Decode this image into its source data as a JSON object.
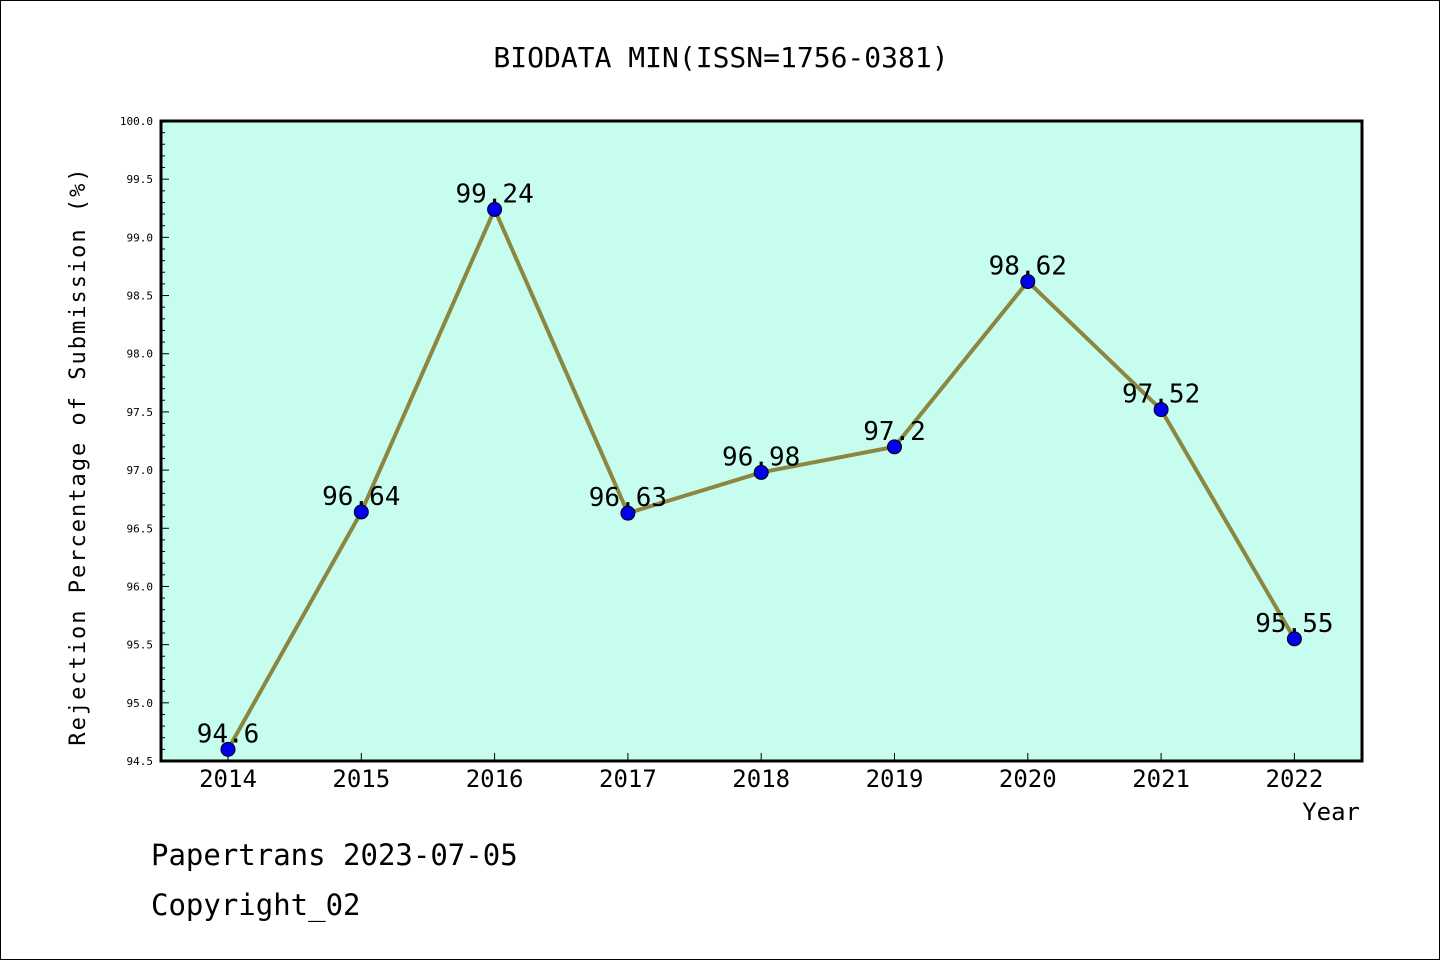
{
  "chart_data": {
    "type": "line",
    "title": "BIODATA MIN(ISSN=1756-0381)",
    "xlabel": "Year",
    "ylabel": "Rejection Percentage of Submission (%)",
    "categories": [
      "2014",
      "2015",
      "2016",
      "2017",
      "2018",
      "2019",
      "2020",
      "2021",
      "2022"
    ],
    "series": [
      {
        "values": [
          94.6,
          96.64,
          99.24,
          96.63,
          96.98,
          97.2,
          98.62,
          97.52,
          95.55
        ],
        "labels": [
          "94.6",
          "96.64",
          "99.24",
          "96.63",
          "96.98",
          "97.2",
          "98.62",
          "97.52",
          "95.55"
        ]
      }
    ],
    "ylim": [
      94.5,
      100.0
    ],
    "yticks": [
      "94.5",
      "95.0",
      "95.5",
      "96.0",
      "96.5",
      "97.0",
      "97.5",
      "98.0",
      "98.5",
      "99.0",
      "99.5",
      "100.0"
    ],
    "grid": false,
    "colors": {
      "plot_background": "#c7fdee",
      "line": "#8b8640",
      "marker": "#0000ee"
    }
  },
  "footer": {
    "line1": "Papertrans 2023-07-05",
    "line2": "Copyright_02"
  }
}
